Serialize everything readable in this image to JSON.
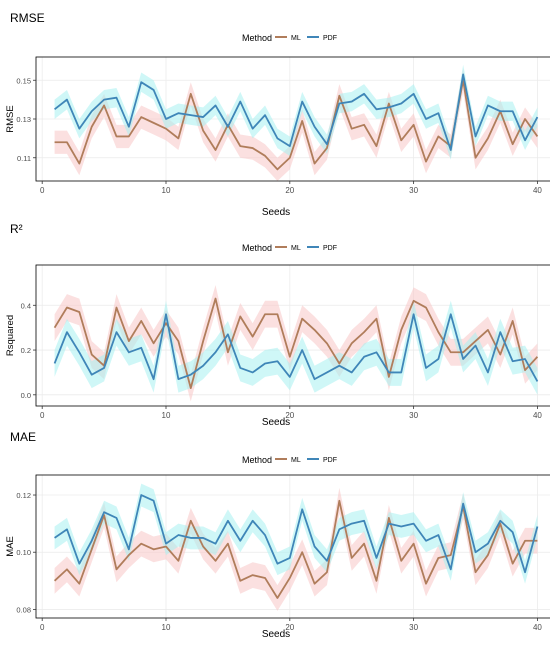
{
  "figure": {
    "background": "#ffffff",
    "panel_border": "#000000",
    "grid_color": "#ebebeb",
    "series_colors": {
      "ML": "#b07d5b",
      "PDF": "#3f86b8"
    },
    "band_colors": {
      "ML": "#f7c7c7",
      "PDF": "#a8f0f0"
    }
  },
  "chart_data": [
    {
      "type": "line",
      "title": "RMSE",
      "xlabel": "Seeds",
      "ylabel": "RMSE",
      "legend_title": "Method",
      "legend_placement": "top-center",
      "grid": true,
      "xlim": [
        -0.5,
        41.5
      ],
      "ylim": [
        0.098,
        0.162
      ],
      "x_ticks": [
        0,
        10,
        20,
        30,
        40
      ],
      "x_tick_labels": [
        "0",
        "10",
        "20",
        "30",
        "40"
      ],
      "y_ticks": [
        0.11,
        0.13,
        0.15
      ],
      "y_tick_labels": [
        "0.11",
        "0.13",
        "0.15"
      ],
      "x": [
        1,
        2,
        3,
        4,
        5,
        6,
        7,
        8,
        9,
        10,
        11,
        12,
        13,
        14,
        15,
        16,
        17,
        18,
        19,
        20,
        21,
        22,
        23,
        24,
        25,
        26,
        27,
        28,
        29,
        30,
        31,
        32,
        33,
        34,
        35,
        36,
        37,
        38,
        39,
        40
      ],
      "series": [
        {
          "name": "ML",
          "band_halfwidth": 0.006,
          "values": [
            0.118,
            0.118,
            0.107,
            0.126,
            0.137,
            0.121,
            0.121,
            0.131,
            0.128,
            0.125,
            0.12,
            0.143,
            0.124,
            0.114,
            0.127,
            0.116,
            0.115,
            0.111,
            0.104,
            0.11,
            0.129,
            0.107,
            0.115,
            0.142,
            0.125,
            0.127,
            0.116,
            0.138,
            0.119,
            0.127,
            0.108,
            0.121,
            0.116,
            0.15,
            0.11,
            0.12,
            0.134,
            0.117,
            0.13,
            0.121
          ]
        },
        {
          "name": "PDF",
          "band_halfwidth": 0.005,
          "values": [
            0.135,
            0.14,
            0.125,
            0.134,
            0.14,
            0.141,
            0.126,
            0.149,
            0.145,
            0.13,
            0.133,
            0.132,
            0.131,
            0.137,
            0.126,
            0.139,
            0.125,
            0.132,
            0.12,
            0.116,
            0.139,
            0.126,
            0.117,
            0.138,
            0.139,
            0.143,
            0.135,
            0.136,
            0.138,
            0.143,
            0.13,
            0.133,
            0.114,
            0.153,
            0.121,
            0.137,
            0.134,
            0.134,
            0.119,
            0.131
          ]
        }
      ]
    },
    {
      "type": "line",
      "title": "R²",
      "xlabel": "Seeds",
      "ylabel": "Rsquared",
      "legend_title": "Method",
      "legend_placement": "top-center",
      "grid": true,
      "xlim": [
        -0.5,
        41.5
      ],
      "ylim": [
        -0.05,
        0.58
      ],
      "x_ticks": [
        0,
        10,
        20,
        30,
        40
      ],
      "x_tick_labels": [
        "0",
        "10",
        "20",
        "30",
        "40"
      ],
      "y_ticks": [
        0.0,
        0.2,
        0.4
      ],
      "y_tick_labels": [
        "0.0",
        "0.2",
        "0.4"
      ],
      "x": [
        1,
        2,
        3,
        4,
        5,
        6,
        7,
        8,
        9,
        10,
        11,
        12,
        13,
        14,
        15,
        16,
        17,
        18,
        19,
        20,
        21,
        22,
        23,
        24,
        25,
        26,
        27,
        28,
        29,
        30,
        31,
        32,
        33,
        34,
        35,
        36,
        37,
        38,
        39,
        40
      ],
      "series": [
        {
          "name": "ML",
          "band_halfwidth": 0.06,
          "values": [
            0.3,
            0.39,
            0.37,
            0.18,
            0.13,
            0.39,
            0.24,
            0.33,
            0.23,
            0.32,
            0.24,
            0.03,
            0.24,
            0.43,
            0.19,
            0.35,
            0.26,
            0.36,
            0.36,
            0.17,
            0.34,
            0.29,
            0.23,
            0.14,
            0.23,
            0.28,
            0.34,
            0.08,
            0.29,
            0.42,
            0.39,
            0.28,
            0.19,
            0.19,
            0.24,
            0.29,
            0.18,
            0.33,
            0.11,
            0.17
          ]
        },
        {
          "name": "PDF",
          "band_halfwidth": 0.06,
          "values": [
            0.14,
            0.28,
            0.19,
            0.09,
            0.12,
            0.28,
            0.19,
            0.21,
            0.07,
            0.36,
            0.07,
            0.09,
            0.13,
            0.19,
            0.27,
            0.12,
            0.1,
            0.14,
            0.15,
            0.08,
            0.2,
            0.07,
            0.1,
            0.13,
            0.1,
            0.17,
            0.19,
            0.1,
            0.1,
            0.36,
            0.12,
            0.16,
            0.36,
            0.16,
            0.22,
            0.1,
            0.28,
            0.15,
            0.16,
            0.06
          ]
        }
      ]
    },
    {
      "type": "line",
      "title": "MAE",
      "xlabel": "Seeds",
      "ylabel": "MAE",
      "legend_title": "Method",
      "legend_placement": "top-center",
      "grid": true,
      "xlim": [
        -0.5,
        41.5
      ],
      "ylim": [
        0.077,
        0.127
      ],
      "x_ticks": [
        0,
        10,
        20,
        30,
        40
      ],
      "x_tick_labels": [
        "0",
        "10",
        "20",
        "30",
        "40"
      ],
      "y_ticks": [
        0.08,
        0.1,
        0.12
      ],
      "y_tick_labels": [
        "0.08",
        "0.10",
        "0.12"
      ],
      "x": [
        1,
        2,
        3,
        4,
        5,
        6,
        7,
        8,
        9,
        10,
        11,
        12,
        13,
        14,
        15,
        16,
        17,
        18,
        19,
        20,
        21,
        22,
        23,
        24,
        25,
        26,
        27,
        28,
        29,
        30,
        31,
        32,
        33,
        34,
        35,
        36,
        37,
        38,
        39,
        40
      ],
      "series": [
        {
          "name": "ML",
          "band_halfwidth": 0.0045,
          "values": [
            0.09,
            0.094,
            0.089,
            0.101,
            0.113,
            0.094,
            0.099,
            0.103,
            0.101,
            0.102,
            0.097,
            0.111,
            0.102,
            0.097,
            0.103,
            0.09,
            0.092,
            0.091,
            0.084,
            0.091,
            0.1,
            0.089,
            0.093,
            0.118,
            0.098,
            0.103,
            0.09,
            0.112,
            0.097,
            0.103,
            0.089,
            0.098,
            0.099,
            0.116,
            0.093,
            0.099,
            0.11,
            0.096,
            0.104,
            0.104
          ]
        },
        {
          "name": "PDF",
          "band_halfwidth": 0.004,
          "values": [
            0.105,
            0.108,
            0.096,
            0.104,
            0.114,
            0.112,
            0.101,
            0.12,
            0.118,
            0.103,
            0.106,
            0.105,
            0.105,
            0.103,
            0.111,
            0.104,
            0.111,
            0.106,
            0.096,
            0.098,
            0.115,
            0.102,
            0.097,
            0.108,
            0.11,
            0.111,
            0.098,
            0.11,
            0.109,
            0.11,
            0.104,
            0.106,
            0.094,
            0.117,
            0.1,
            0.103,
            0.111,
            0.107,
            0.093,
            0.109
          ]
        }
      ]
    }
  ]
}
